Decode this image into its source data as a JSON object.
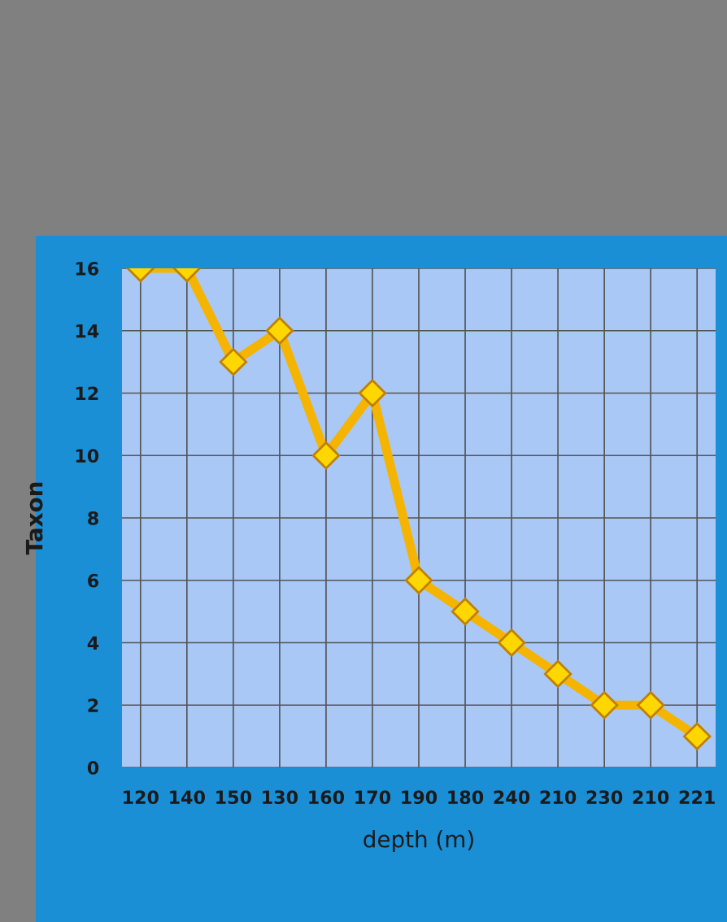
{
  "chart_data": {
    "type": "line",
    "categories": [
      "120",
      "140",
      "150",
      "130",
      "160",
      "170",
      "190",
      "180",
      "240",
      "210",
      "230",
      "210",
      "221"
    ],
    "series": [
      {
        "color": "#f5b400",
        "values": [
          16,
          16,
          13,
          14,
          10,
          12,
          6,
          5,
          4,
          3,
          2,
          2,
          1
        ]
      }
    ],
    "xlabel": "depth (m)",
    "ylabel": "Taxon",
    "ylim": [
      0,
      16
    ],
    "yticks": [
      0,
      2,
      4,
      6,
      8,
      10,
      12,
      14,
      16
    ],
    "grid": true,
    "marker": "diamond",
    "line_style": "solid"
  }
}
